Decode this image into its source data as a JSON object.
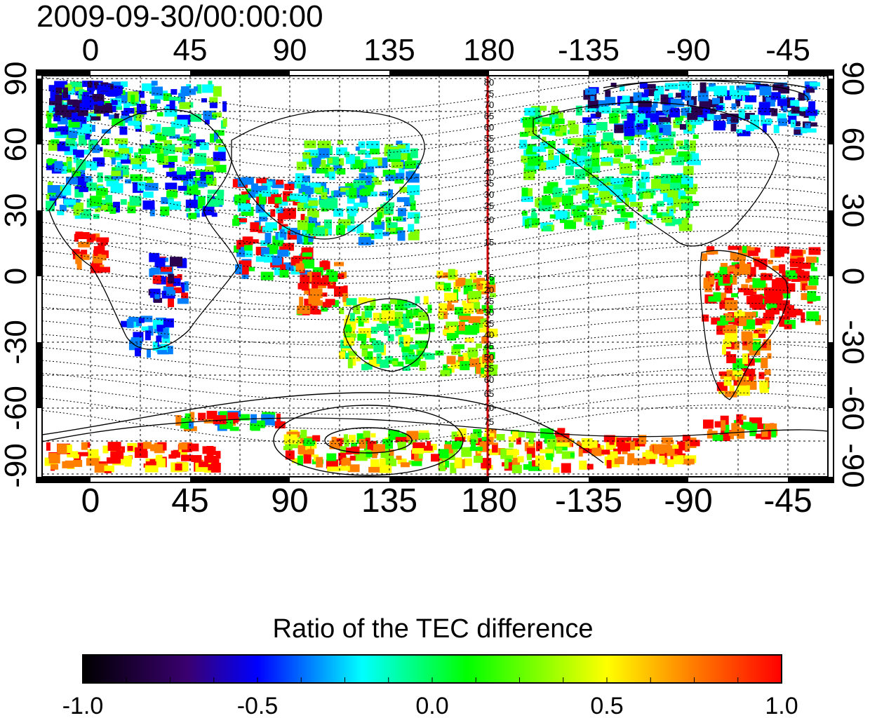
{
  "timestamp": "2009-09-30/00:00:00",
  "lon_ticks": [
    "0",
    "45",
    "90",
    "135",
    "180",
    "-135",
    "-90",
    "-45"
  ],
  "lat_ticks_left": [
    "90",
    "60",
    "30",
    "0",
    "-30",
    "-60",
    "-90"
  ],
  "lat_ticks_right": [
    "90",
    "60",
    "30",
    "0",
    "-30",
    "-60",
    "-90"
  ],
  "meridian_labels": [
    "80",
    "75",
    "70",
    "65",
    "60",
    "55",
    "50",
    "45",
    "40",
    "35",
    "30",
    "25",
    "20",
    "15",
    "15",
    "20",
    "25",
    "30",
    "35",
    "40",
    "45",
    "50",
    "55",
    "60",
    "65",
    "70",
    "75"
  ],
  "colorbar": {
    "title": "Ratio of the TEC difference",
    "tick_labels": [
      "-1.0",
      "-0.5",
      "0.0",
      "0.5",
      "1.0"
    ],
    "range": [
      -1.0,
      1.0
    ]
  },
  "colors": {
    "meridian_line": "#cc0000",
    "colormap": [
      "#000000",
      "#3a0070",
      "#0000ff",
      "#00ffff",
      "#00ff00",
      "#ffff00",
      "#ff0000"
    ]
  }
}
